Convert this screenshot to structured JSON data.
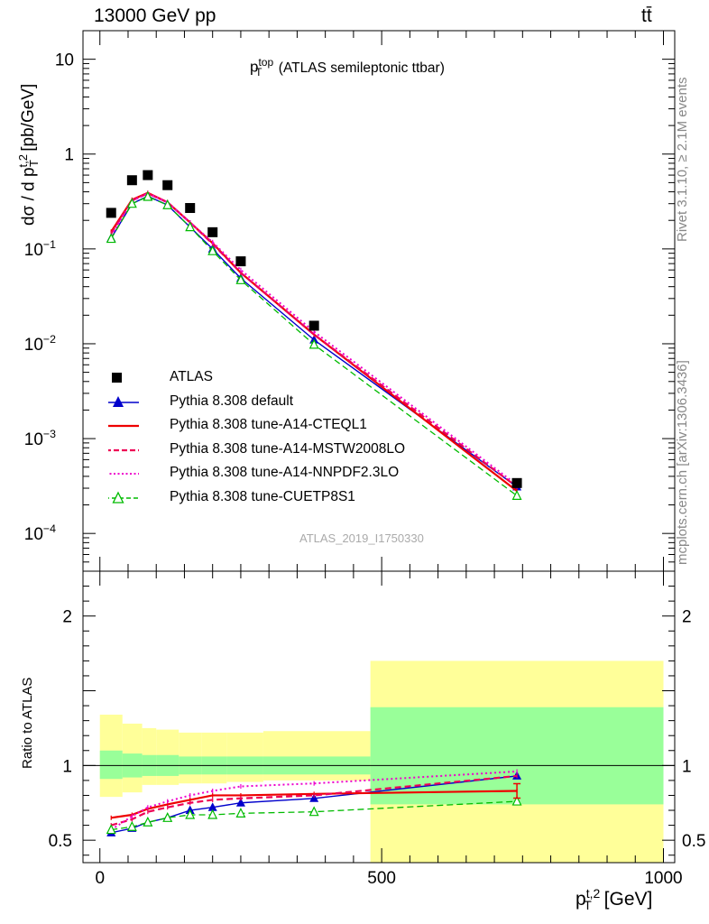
{
  "header": {
    "left": "13000 GeV pp",
    "right": "tt̄"
  },
  "side_labels": {
    "rivet": "Rivet 3.1.10, ≥ 2.1M events",
    "mcplots": "mcplots.cern.ch [arXiv:1306.3436]"
  },
  "watermark": "ATLAS_2019_I1750330",
  "plot_title": {
    "main": "p",
    "sup": "top",
    "sub": "T",
    "rest": " (ATLAS semileptonic ttbar)"
  },
  "axes": {
    "ylabel_main": "dσ / d p",
    "ylabel_sup": "t,2",
    "ylabel_sub": "T",
    "ylabel_unit": " [pb/GeV]",
    "ylabel_ratio": "Ratio to ATLAS",
    "xlabel_main": "p",
    "xlabel_sup": "t,2",
    "xlabel_sub": "T",
    "xlabel_unit": " [GeV]"
  },
  "colors": {
    "data": "#000000",
    "default": "#0000cc",
    "cteql1": "#ee0000",
    "mstw": "#ee0055",
    "nnpdf": "#ee00cc",
    "cuetp8s1": "#00bb00",
    "band_inner": "#99ff99",
    "band_outer": "#ffff99"
  },
  "legend": [
    {
      "label": "ATLAS",
      "key": "data"
    },
    {
      "label": "Pythia 8.308 default",
      "key": "default"
    },
    {
      "label": "Pythia 8.308 tune-A14-CTEQL1",
      "key": "cteql1"
    },
    {
      "label": "Pythia 8.308 tune-A14-MSTW2008LO",
      "key": "mstw"
    },
    {
      "label": "Pythia 8.308 tune-A14-NNPDF2.3LO",
      "key": "nnpdf"
    },
    {
      "label": "Pythia 8.308 tune-CUETP8S1",
      "key": "cuetp8s1"
    }
  ],
  "chart_data": [
    {
      "type": "line",
      "panel": "main",
      "yscale": "log",
      "xlim": [
        -30,
        1020
      ],
      "ylim": [
        4e-05,
        20
      ],
      "x": [
        20,
        57,
        85,
        120,
        160,
        200,
        250,
        380,
        740
      ],
      "x_bins": [
        [
          0,
          40
        ],
        [
          40,
          75
        ],
        [
          75,
          100
        ],
        [
          100,
          140
        ],
        [
          140,
          180
        ],
        [
          180,
          225
        ],
        [
          225,
          290
        ],
        [
          290,
          480
        ],
        [
          480,
          1000
        ]
      ],
      "data": {
        "name": "ATLAS",
        "values": [
          0.24,
          0.53,
          0.6,
          0.47,
          0.27,
          0.15,
          0.074,
          0.0155,
          0.00034
        ]
      },
      "series": [
        {
          "name": "Pythia 8.308 default",
          "key": "default",
          "marker": "filled-triangle",
          "dash": "solid",
          "values": [
            0.13,
            0.3,
            0.36,
            0.29,
            0.17,
            0.1,
            0.049,
            0.011,
            0.00031
          ]
        },
        {
          "name": "Pythia 8.308 tune-A14-CTEQL1",
          "key": "cteql1",
          "marker": "none",
          "dash": "solid",
          "values": [
            0.152,
            0.33,
            0.39,
            0.31,
            0.19,
            0.115,
            0.056,
            0.0125,
            0.00028
          ]
        },
        {
          "name": "Pythia 8.308 tune-A14-MSTW2008LO",
          "key": "mstw",
          "marker": "none",
          "dash": "dashed",
          "values": [
            0.145,
            0.325,
            0.385,
            0.31,
            0.19,
            0.113,
            0.056,
            0.0125,
            0.00031
          ]
        },
        {
          "name": "Pythia 8.308 tune-A14-NNPDF2.3LO",
          "key": "nnpdf",
          "marker": "none",
          "dash": "dotted",
          "values": [
            0.138,
            0.32,
            0.385,
            0.31,
            0.19,
            0.118,
            0.06,
            0.0134,
            0.000325
          ]
        },
        {
          "name": "Pythia 8.308 tune-CUETP8S1",
          "key": "cuetp8s1",
          "marker": "open-triangle",
          "dash": "dashed",
          "values": [
            0.128,
            0.3,
            0.355,
            0.29,
            0.17,
            0.095,
            0.047,
            0.0098,
            0.00025
          ]
        }
      ],
      "yticks": [
        {
          "value": 10,
          "label": "10",
          "sup": ""
        },
        {
          "value": 1,
          "label": "1",
          "sup": ""
        },
        {
          "value": 0.1,
          "label": "10",
          "sup": "−1"
        },
        {
          "value": 0.01,
          "label": "10",
          "sup": "−2"
        },
        {
          "value": 0.001,
          "label": "10",
          "sup": "−3"
        },
        {
          "value": 0.0001,
          "label": "10",
          "sup": "−4"
        }
      ]
    },
    {
      "type": "line",
      "panel": "ratio",
      "xlim": [
        -30,
        1020
      ],
      "ylim": [
        0.35,
        2.3
      ],
      "x": [
        20,
        57,
        85,
        120,
        160,
        200,
        250,
        380,
        740
      ],
      "reference": 1,
      "bands": {
        "x_edges": [
          0,
          40,
          75,
          100,
          140,
          180,
          225,
          290,
          480,
          1000
        ],
        "inner": [
          [
            0.91,
            1.1
          ],
          [
            0.92,
            1.08
          ],
          [
            0.93,
            1.07
          ],
          [
            0.93,
            1.07
          ],
          [
            0.94,
            1.06
          ],
          [
            0.94,
            1.06
          ],
          [
            0.94,
            1.06
          ],
          [
            0.94,
            1.06
          ],
          [
            0.74,
            1.39
          ]
        ],
        "outer": [
          [
            0.79,
            1.34
          ],
          [
            0.82,
            1.28
          ],
          [
            0.87,
            1.25
          ],
          [
            0.87,
            1.24
          ],
          [
            0.88,
            1.22
          ],
          [
            0.88,
            1.22
          ],
          [
            0.89,
            1.22
          ],
          [
            0.9,
            1.23
          ],
          [
            0.35,
            1.7
          ]
        ]
      },
      "series": [
        {
          "name": "Pythia 8.308 default",
          "key": "default",
          "marker": "filled-triangle",
          "dash": "solid",
          "values": [
            0.55,
            0.58,
            0.62,
            0.65,
            0.7,
            0.72,
            0.75,
            0.78,
            0.93
          ]
        },
        {
          "name": "Pythia 8.308 tune-A14-CTEQL1",
          "key": "cteql1",
          "marker": "none",
          "dash": "solid",
          "values": [
            0.65,
            0.67,
            0.71,
            0.74,
            0.77,
            0.8,
            0.8,
            0.81,
            0.83
          ]
        },
        {
          "name": "Pythia 8.308 tune-A14-MSTW2008LO",
          "key": "mstw",
          "marker": "none",
          "dash": "dashed",
          "values": [
            0.6,
            0.64,
            0.69,
            0.72,
            0.75,
            0.77,
            0.78,
            0.8,
            0.93
          ]
        },
        {
          "name": "Pythia 8.308 tune-A14-NNPDF2.3LO",
          "key": "nnpdf",
          "marker": "none",
          "dash": "dotted",
          "values": [
            0.57,
            0.66,
            0.72,
            0.76,
            0.8,
            0.83,
            0.86,
            0.88,
            0.96
          ]
        },
        {
          "name": "Pythia 8.308 tune-CUETP8S1",
          "key": "cuetp8s1",
          "marker": "open-triangle",
          "dash": "dashed",
          "values": [
            0.57,
            0.59,
            0.62,
            0.65,
            0.67,
            0.67,
            0.68,
            0.69,
            0.76
          ]
        }
      ],
      "yticks": [
        {
          "value": 2,
          "label": "2"
        },
        {
          "value": 1,
          "label": "1"
        },
        {
          "value": 0.5,
          "label": "0.5"
        }
      ],
      "xticks": [
        {
          "value": 0,
          "label": "0"
        },
        {
          "value": 500,
          "label": "500"
        },
        {
          "value": 1000,
          "label": "1000"
        }
      ]
    }
  ]
}
